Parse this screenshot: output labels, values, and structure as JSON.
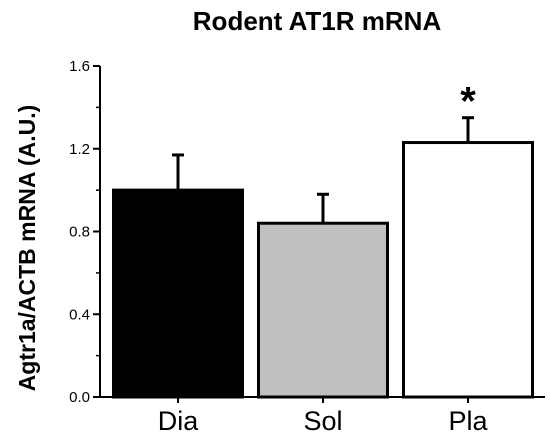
{
  "chart_data": {
    "type": "bar",
    "title": "Rodent AT1R mRNA",
    "ylabel": "Agtr1a/ACTB mRNA (A.U.)",
    "xlabel": "",
    "categories": [
      "Dia",
      "Sol",
      "Pla"
    ],
    "values": [
      1.0,
      0.84,
      1.23
    ],
    "errors": [
      0.17,
      0.14,
      0.12
    ],
    "bar_colors": [
      "#000000",
      "#c0c0c0",
      "#ffffff"
    ],
    "ylim": [
      0,
      1.6
    ],
    "yticks": [
      "0.0",
      "0.4",
      "0.8",
      "1.2",
      "1.6"
    ],
    "annotations": [
      {
        "category": "Pla",
        "text": "*"
      }
    ],
    "grid": false,
    "legend": "none"
  }
}
